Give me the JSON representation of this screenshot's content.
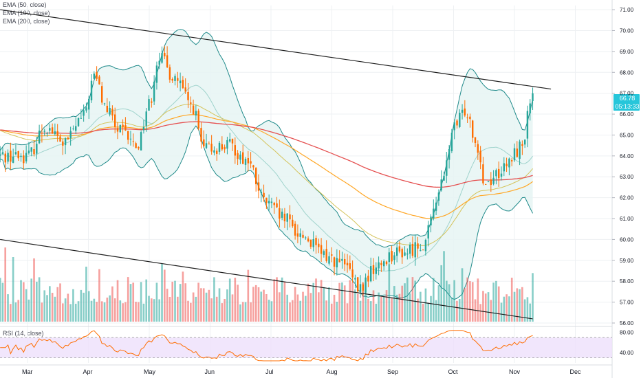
{
  "legends": {
    "ema50": "EMA (50, close)",
    "ema100": "EMA (100, close)",
    "ema200": "EMA (200, close)",
    "rsi": "RSI (14, close)"
  },
  "price_tags": {
    "last_price": "66.78",
    "countdown": "05:13:33"
  },
  "colors": {
    "up": "#26a69a",
    "down": "#ff6d00",
    "bb_line": "#1f8a8a",
    "bb_fill": "#e6f5f3",
    "ema50": "#d4c35a",
    "ema100": "#ffa726",
    "ema200": "#e55050",
    "vol_up": "#26a69a",
    "vol_down": "#ef5350",
    "rsi_line": "#ff6d00",
    "rsi_band": "#ede0fb",
    "tag_bg": "#26c6da"
  },
  "chart_data": [
    {
      "type": "candlestick",
      "ylim": [
        56.0,
        71.2
      ],
      "y_ticks": [
        "71.00",
        "70.00",
        "69.00",
        "68.00",
        "67.00",
        "66.00",
        "65.00",
        "64.00",
        "63.00",
        "62.00",
        "61.00",
        "60.00",
        "59.00",
        "58.00",
        "57.00",
        "56.00"
      ],
      "x_ticks": [
        "Mar",
        "Apr",
        "May",
        "Jun",
        "Jul",
        "Aug",
        "Sep",
        "Oct",
        "Nov",
        "Dec"
      ],
      "price_anchors": [
        {
          "month": 0.0,
          "price": 64.0
        },
        {
          "month": 0.3,
          "price": 65.4
        },
        {
          "month": 0.6,
          "price": 64.6
        },
        {
          "month": 0.9,
          "price": 65.8
        },
        {
          "month": 1.1,
          "price": 67.8
        },
        {
          "month": 1.3,
          "price": 66.2
        },
        {
          "month": 1.5,
          "price": 65.2
        },
        {
          "month": 1.8,
          "price": 64.5
        },
        {
          "month": 2.0,
          "price": 66.5
        },
        {
          "month": 2.15,
          "price": 68.8
        },
        {
          "month": 2.4,
          "price": 67.8
        },
        {
          "month": 2.7,
          "price": 66.4
        },
        {
          "month": 2.9,
          "price": 64.3
        },
        {
          "month": 3.3,
          "price": 64.5
        },
        {
          "month": 3.6,
          "price": 63.8
        },
        {
          "month": 3.9,
          "price": 61.8
        },
        {
          "month": 4.2,
          "price": 61.0
        },
        {
          "month": 4.5,
          "price": 60.2
        },
        {
          "month": 4.9,
          "price": 59.2
        },
        {
          "month": 5.2,
          "price": 58.8
        },
        {
          "month": 5.45,
          "price": 57.6
        },
        {
          "month": 5.7,
          "price": 58.6
        },
        {
          "month": 6.0,
          "price": 59.3
        },
        {
          "month": 6.2,
          "price": 59.4
        },
        {
          "month": 6.5,
          "price": 59.8
        },
        {
          "month": 6.8,
          "price": 62.6
        },
        {
          "month": 7.0,
          "price": 65.3
        },
        {
          "month": 7.2,
          "price": 66.2
        },
        {
          "month": 7.4,
          "price": 64.5
        },
        {
          "month": 7.5,
          "price": 62.7
        },
        {
          "month": 7.8,
          "price": 63.3
        },
        {
          "month": 8.1,
          "price": 64.4
        },
        {
          "month": 8.3,
          "price": 66.8
        }
      ],
      "channel": {
        "upper": [
          {
            "month": -0.45,
            "price": 71.0
          },
          {
            "month": 8.6,
            "price": 67.2
          }
        ],
        "lower": [
          {
            "month": -0.45,
            "price": 60.0
          },
          {
            "month": 8.3,
            "price": 56.2
          }
        ]
      }
    },
    {
      "type": "bar",
      "name": "Volume"
    },
    {
      "type": "line",
      "name": "RSI",
      "y_ticks": [
        "80.00",
        "40.00"
      ],
      "band": [
        30,
        70
      ]
    }
  ]
}
